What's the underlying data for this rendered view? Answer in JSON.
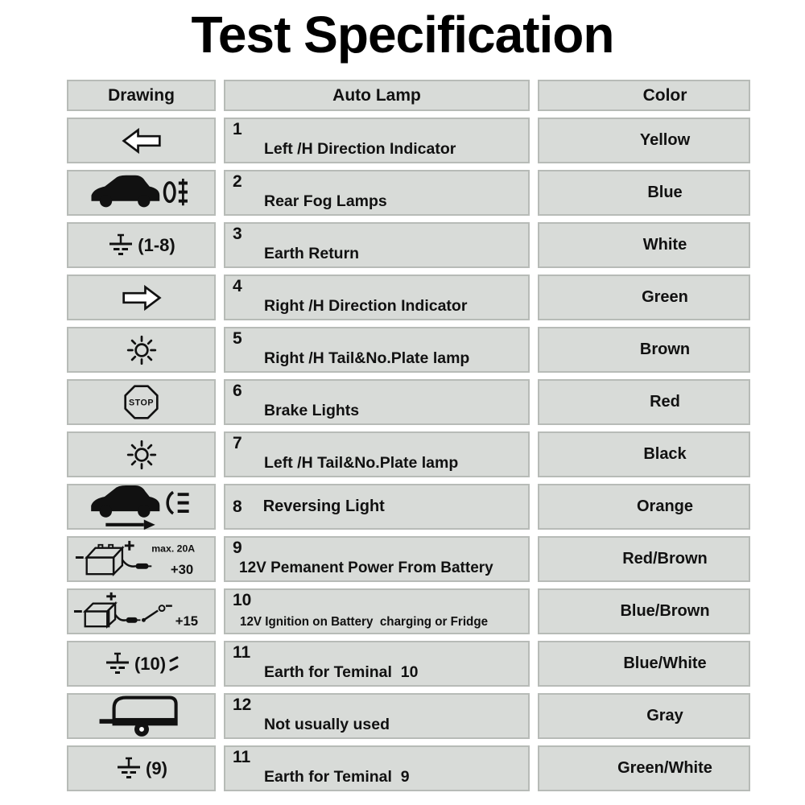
{
  "title": "Test Specification",
  "table": {
    "headers": [
      "Drawing",
      "Auto Lamp",
      "Color"
    ],
    "rows": [
      {
        "num": "1",
        "lamp": "Left /H Direction Indicator",
        "color": "Yellow",
        "icon": "left-arrow"
      },
      {
        "num": "2",
        "lamp": "Rear Fog Lamps",
        "color": "Blue",
        "icon": "car-fog-lamp"
      },
      {
        "num": "3",
        "lamp": "Earth Return",
        "color": "White",
        "icon": "earth-ground",
        "icon_text": "(1-8)"
      },
      {
        "num": "4",
        "lamp": "Right /H Direction Indicator",
        "color": "Green",
        "icon": "right-arrow"
      },
      {
        "num": "5",
        "lamp": "Right /H Tail&No.Plate lamp",
        "color": "Brown",
        "icon": "tail-lamp"
      },
      {
        "num": "6",
        "lamp": "Brake Lights",
        "color": "Red",
        "icon": "stop-sign",
        "svg_text": {
          "l1": "STOP"
        }
      },
      {
        "num": "7",
        "lamp": "Left /H Tail&No.Plate lamp",
        "color": "Black",
        "icon": "tail-lamp"
      },
      {
        "num": "8",
        "lamp": "Reversing Light",
        "color": "Orange",
        "icon": "car-reversing-lamp",
        "inline": true
      },
      {
        "num": "9",
        "lamp": "12V Pemanent Power From Battery",
        "color": "Red/Brown",
        "icon": "battery-permanent",
        "svg_text": {
          "l1": "max. 20A",
          "l2": "+30"
        }
      },
      {
        "num": "10",
        "lamp": "12V Ignition on Battery  charging or Fridge",
        "color": "Blue/Brown",
        "icon": "battery-ignition",
        "svg_text": {
          "l1": "+15"
        }
      },
      {
        "num": "11",
        "lamp": "Earth for Teminal  10",
        "color": "Blue/White",
        "icon": "earth-ground",
        "icon_text": "(10)",
        "icon2": "lamp-rays"
      },
      {
        "num": "12",
        "lamp": "Not usually used",
        "color": "Gray",
        "icon": "trailer"
      },
      {
        "num": "11",
        "lamp": "Earth for Teminal  9",
        "color": "Green/White",
        "icon": "earth-ground",
        "icon_text": "(9)"
      }
    ]
  }
}
